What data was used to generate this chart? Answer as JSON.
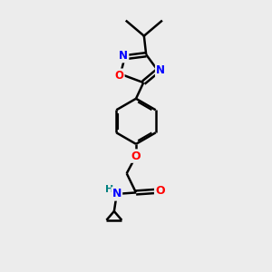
{
  "bg_color": "#ececec",
  "bond_color": "#000000",
  "N_color": "#0000ff",
  "O_color": "#ff0000",
  "H_color": "#008080",
  "line_width": 1.8,
  "figsize": [
    3.0,
    3.0
  ],
  "dpi": 100,
  "xlim": [
    0,
    10
  ],
  "ylim": [
    0,
    10
  ]
}
